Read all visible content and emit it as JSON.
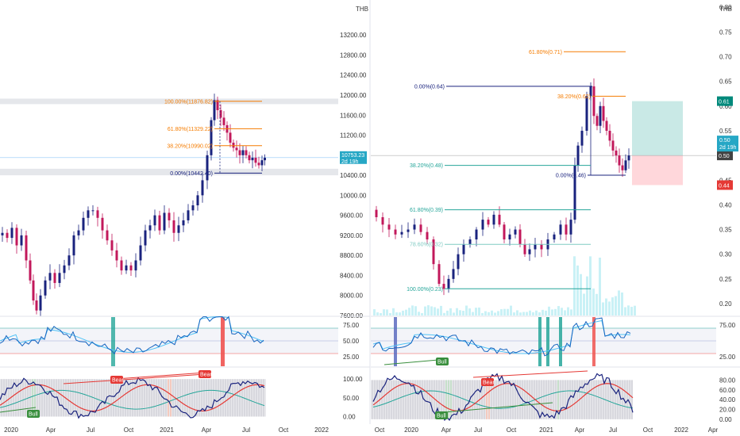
{
  "chart_data": [
    {
      "type": "candlestick",
      "title": "",
      "currency": "THB",
      "ylim": [
        7500,
        13100
      ],
      "y_ticks": [
        "7600.00",
        "8000.00",
        "8400.00",
        "8800.00",
        "9200.00",
        "9600.00",
        "10000.00",
        "10400.00",
        "10800.00",
        "11200.00",
        "11600.00",
        "12000.00",
        "12400.00",
        "12800.00",
        "13200.00"
      ],
      "x_ticks": [
        "2020",
        "Apr",
        "Jul",
        "Oct",
        "2021",
        "Apr",
        "Jul",
        "Oct",
        "2022"
      ],
      "last_price": {
        "value": "10753.23",
        "countdown": "2d 19h",
        "color": "#26a7c5"
      },
      "fibonacci": [
        {
          "label": "100.00%(11876.82)",
          "level": 11876.82,
          "color": "#f57c00"
        },
        {
          "label": "61.80%(11329.22)",
          "level": 11329.22,
          "color": "#f57c00"
        },
        {
          "label": "38.20%(10990.02)",
          "level": 10990.02,
          "color": "#f57c00"
        },
        {
          "label": "0.00%(10442.40)",
          "level": 10442.4,
          "color": "#1a237e"
        }
      ],
      "rsi_panel": {
        "ticks": [
          "75.00",
          "50.00",
          "25.00"
        ],
        "ylim": [
          10,
          90
        ]
      },
      "stoch_panel": {
        "ticks": [
          "100.00",
          "50.00",
          "0.00"
        ],
        "ylim": [
          -20,
          130
        ]
      },
      "signals": [
        {
          "text": "Bull",
          "color": "#388e3c"
        },
        {
          "text": "Bear",
          "color": "#e53935"
        },
        {
          "text": "Bear",
          "color": "#e53935"
        }
      ],
      "colors": {
        "up": "#1a237e",
        "down": "#c2185b",
        "rsi": "#1565c0",
        "rsi_ma": "#4fc3f7",
        "highlight_up": "#26a69a",
        "highlight_down": "#ef5350"
      }
    },
    {
      "type": "candlestick",
      "title": "",
      "currency": "THB",
      "ylim": [
        0.17,
        0.8
      ],
      "y_ticks": [
        "0.20",
        "0.25",
        "0.30",
        "0.35",
        "0.40",
        "0.45",
        "0.50",
        "0.55",
        "0.60",
        "0.65",
        "0.70",
        "0.75",
        "0.80"
      ],
      "x_ticks": [
        "Oct",
        "2020",
        "Apr",
        "Jul",
        "Oct",
        "2021",
        "Apr",
        "Jul",
        "Oct",
        "2022",
        "Apr"
      ],
      "last_price": {
        "value": "0.50",
        "countdown": "2d 19h",
        "color": "#26a7c5"
      },
      "price_tags": [
        {
          "value": "0.61",
          "color": "#00897b"
        },
        {
          "value": "0.50",
          "color": "#424242"
        },
        {
          "value": "0.44",
          "color": "#e53935"
        }
      ],
      "fibonacci_upper": [
        {
          "label": "61.80%(0.71)",
          "level": 0.71,
          "color": "#f57c00"
        },
        {
          "label": "38.20%(0.62)",
          "level": 0.62,
          "color": "#f57c00"
        },
        {
          "label": "0.00%(0.64)",
          "level": 0.64,
          "color": "#1a237e"
        },
        {
          "label": "0.00%(0.46)",
          "level": 0.46,
          "color": "#1a237e"
        }
      ],
      "fibonacci_lower": [
        {
          "label": "38.20%(0.48)",
          "level": 0.48,
          "color": "#26a69a"
        },
        {
          "label": "61.80%(0.39)",
          "level": 0.39,
          "color": "#26a69a"
        },
        {
          "label": "78.60%(0.32)",
          "level": 0.32,
          "color": "#80cbc4"
        },
        {
          "label": "100.00%(0.23)",
          "level": 0.23,
          "color": "#26a69a"
        }
      ],
      "position": {
        "entry": 0.5,
        "target": 0.61,
        "stop": 0.44
      },
      "rsi_panel": {
        "ticks": [
          "75.00",
          "25.00"
        ],
        "ylim": [
          10,
          90
        ]
      },
      "stoch_panel": {
        "ticks": [
          "80.00",
          "60.00",
          "40.00",
          "20.00",
          "0.00"
        ],
        "ylim": [
          -10,
          105
        ]
      },
      "signals": [
        {
          "text": "Bull",
          "color": "#388e3c"
        },
        {
          "text": "Bull",
          "color": "#388e3c"
        },
        {
          "text": "Bear",
          "color": "#e53935"
        }
      ]
    }
  ]
}
